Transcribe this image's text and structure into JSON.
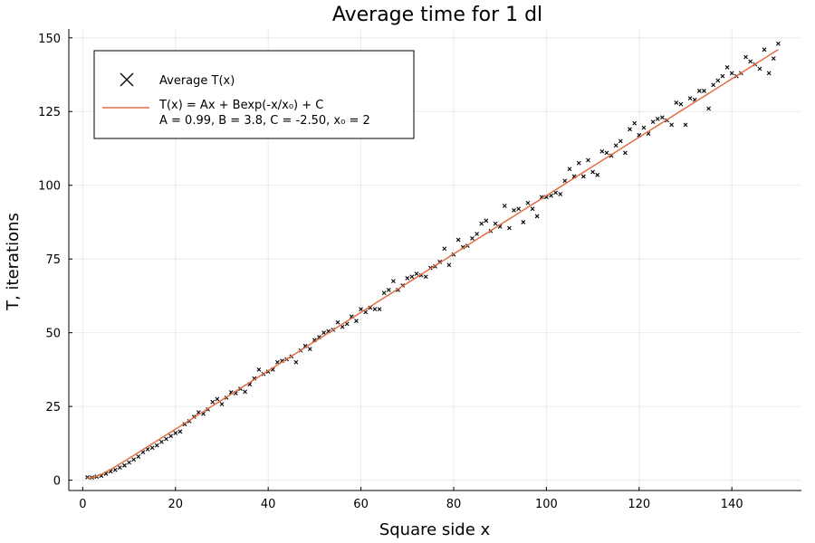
{
  "chart_data": {
    "type": "scatter",
    "title": "Average time for 1 dl",
    "xlabel": "Square side x",
    "ylabel": "T, iterations",
    "xlim": [
      -3,
      155
    ],
    "ylim": [
      -3.5,
      153
    ],
    "xticks": [
      0,
      20,
      40,
      60,
      80,
      100,
      120,
      140
    ],
    "yticks": [
      0,
      25,
      50,
      75,
      100,
      125,
      150
    ],
    "grid": true,
    "legend_position": "top-left",
    "colors": {
      "scatter": "#000000",
      "fit": "#e26f46"
    },
    "series": [
      {
        "name": "Average T(x)",
        "kind": "scatter",
        "marker": "x",
        "points": [
          [
            1,
            1.0
          ],
          [
            2,
            0.9
          ],
          [
            3,
            1.2
          ],
          [
            4,
            1.5
          ],
          [
            5,
            2.2
          ],
          [
            6,
            3.0
          ],
          [
            7,
            3.5
          ],
          [
            8,
            4.3
          ],
          [
            9,
            5.0
          ],
          [
            10,
            6.0
          ],
          [
            11,
            7.0
          ],
          [
            12,
            8.0
          ],
          [
            13,
            9.5
          ],
          [
            14,
            10.5
          ],
          [
            15,
            11.0
          ],
          [
            16,
            11.8
          ],
          [
            17,
            13.0
          ],
          [
            18,
            14.0
          ],
          [
            19,
            15.0
          ],
          [
            20,
            16.0
          ],
          [
            21,
            16.5
          ],
          [
            22,
            19.0
          ],
          [
            23,
            20.0
          ],
          [
            24,
            21.5
          ],
          [
            25,
            23.0
          ],
          [
            26,
            22.5
          ],
          [
            27,
            24.0
          ],
          [
            28,
            26.5
          ],
          [
            29,
            27.5
          ],
          [
            30,
            25.8
          ],
          [
            31,
            28.0
          ],
          [
            32,
            29.8
          ],
          [
            33,
            29.5
          ],
          [
            34,
            31.0
          ],
          [
            35,
            30.0
          ],
          [
            36,
            32.5
          ],
          [
            37,
            34.5
          ],
          [
            38,
            37.5
          ],
          [
            39,
            36.0
          ],
          [
            40,
            36.8
          ],
          [
            41,
            37.5
          ],
          [
            42,
            40.0
          ],
          [
            43,
            40.5
          ],
          [
            44,
            41.0
          ],
          [
            45,
            42.0
          ],
          [
            46,
            40.0
          ],
          [
            47,
            44.0
          ],
          [
            48,
            45.5
          ],
          [
            49,
            44.5
          ],
          [
            50,
            47.5
          ],
          [
            51,
            48.5
          ],
          [
            52,
            50.0
          ],
          [
            53,
            50.5
          ],
          [
            54,
            51.0
          ],
          [
            55,
            53.5
          ],
          [
            56,
            52.0
          ],
          [
            57,
            53.0
          ],
          [
            58,
            55.5
          ],
          [
            59,
            54.0
          ],
          [
            60,
            58.0
          ],
          [
            61,
            57.0
          ],
          [
            62,
            58.5
          ],
          [
            63,
            58.0
          ],
          [
            64,
            58.0
          ],
          [
            65,
            63.5
          ],
          [
            66,
            64.5
          ],
          [
            67,
            67.5
          ],
          [
            68,
            64.5
          ],
          [
            69,
            66.0
          ],
          [
            70,
            68.5
          ],
          [
            71,
            69.0
          ],
          [
            72,
            70.0
          ],
          [
            73,
            69.5
          ],
          [
            74,
            69.0
          ],
          [
            75,
            72.0
          ],
          [
            76,
            72.5
          ],
          [
            77,
            74.0
          ],
          [
            78,
            78.5
          ],
          [
            79,
            73.0
          ],
          [
            80,
            76.5
          ],
          [
            81,
            81.5
          ],
          [
            82,
            79.0
          ],
          [
            83,
            79.5
          ],
          [
            84,
            82.0
          ],
          [
            85,
            83.5
          ],
          [
            86,
            87.0
          ],
          [
            87,
            88.0
          ],
          [
            88,
            84.5
          ],
          [
            89,
            87.0
          ],
          [
            90,
            86.0
          ],
          [
            91,
            93.0
          ],
          [
            92,
            85.5
          ],
          [
            93,
            91.5
          ],
          [
            94,
            92.0
          ],
          [
            95,
            87.5
          ],
          [
            96,
            94.0
          ],
          [
            97,
            92.0
          ],
          [
            98,
            89.5
          ],
          [
            99,
            96.0
          ],
          [
            100,
            96.0
          ],
          [
            101,
            96.5
          ],
          [
            102,
            97.5
          ],
          [
            103,
            97.0
          ],
          [
            104,
            101.5
          ],
          [
            105,
            105.5
          ],
          [
            106,
            103.0
          ],
          [
            107,
            107.5
          ],
          [
            108,
            103.0
          ],
          [
            109,
            108.5
          ],
          [
            110,
            104.5
          ],
          [
            111,
            103.5
          ],
          [
            112,
            111.5
          ],
          [
            113,
            111.0
          ],
          [
            114,
            110.0
          ],
          [
            115,
            113.5
          ],
          [
            116,
            115.0
          ],
          [
            117,
            111.0
          ],
          [
            118,
            119.0
          ],
          [
            119,
            121.0
          ],
          [
            120,
            117.0
          ],
          [
            121,
            119.5
          ],
          [
            122,
            117.5
          ],
          [
            123,
            121.5
          ],
          [
            124,
            122.5
          ],
          [
            125,
            123.0
          ],
          [
            126,
            122.0
          ],
          [
            127,
            120.5
          ],
          [
            128,
            128.0
          ],
          [
            129,
            127.5
          ],
          [
            130,
            120.5
          ],
          [
            131,
            129.5
          ],
          [
            132,
            129.0
          ],
          [
            133,
            132.0
          ],
          [
            134,
            132.0
          ],
          [
            135,
            126.0
          ],
          [
            136,
            134.0
          ],
          [
            137,
            135.5
          ],
          [
            138,
            137.0
          ],
          [
            139,
            140.0
          ],
          [
            140,
            138.0
          ],
          [
            141,
            137.0
          ],
          [
            142,
            138.0
          ],
          [
            143,
            143.5
          ],
          [
            144,
            142.0
          ],
          [
            145,
            141.0
          ],
          [
            146,
            139.5
          ],
          [
            147,
            146.0
          ],
          [
            148,
            138.0
          ],
          [
            149,
            143.0
          ],
          [
            150,
            148.0
          ]
        ]
      },
      {
        "name": "T(x) = Ax + Bexp(-x/x₀) + C",
        "name_line2": "A = 0.99, B = 3.8, C = -2.50, x₀ = 2",
        "kind": "line",
        "params": {
          "A": 0.99,
          "B": 3.8,
          "C": -2.5,
          "x0": 2
        },
        "x_range": [
          1,
          150
        ]
      }
    ]
  }
}
